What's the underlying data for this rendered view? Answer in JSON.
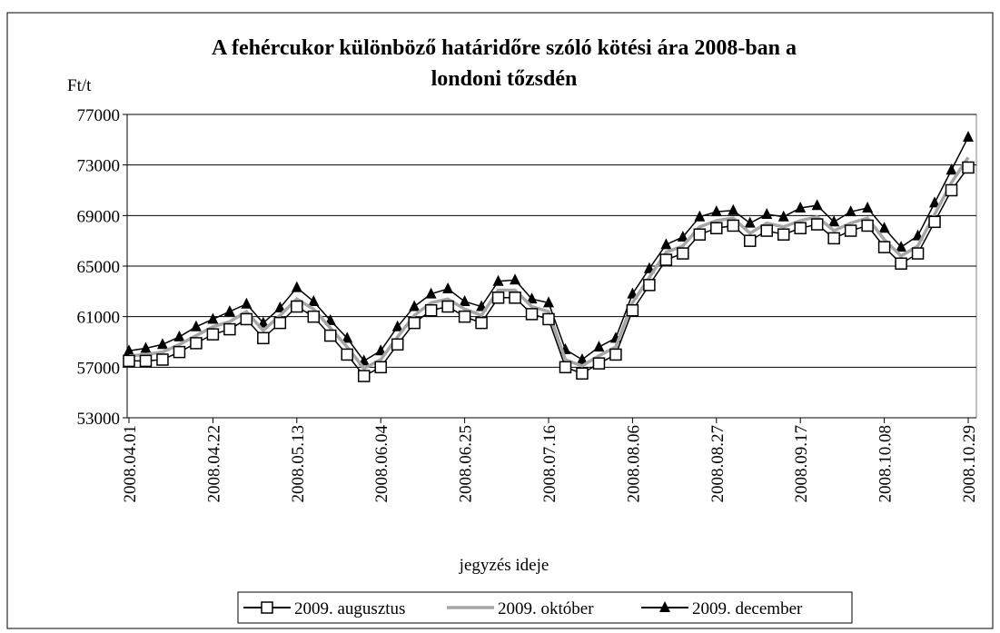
{
  "chart_data": {
    "type": "line",
    "title": "A fehércukor különböző határidőre szóló kötési ára 2008-ban a",
    "title_line2": "londoni tőzsdén",
    "y_label": "Ft/t",
    "x_label": "jegyzés ideje",
    "categories": [
      "2008.04.01",
      null,
      null,
      null,
      null,
      "2008.04.22",
      null,
      null,
      null,
      null,
      "2008.05.13",
      null,
      null,
      null,
      null,
      "2008.06.04",
      null,
      null,
      null,
      null,
      "2008.06.25",
      null,
      null,
      null,
      null,
      "2008.07.16",
      null,
      null,
      null,
      null,
      "2008.08.06",
      null,
      null,
      null,
      null,
      "2008.08.27",
      null,
      null,
      null,
      null,
      "2008.09.17",
      null,
      null,
      null,
      null,
      "2008.10.08",
      null,
      null,
      null,
      null,
      "2008.10.29"
    ],
    "series": [
      {
        "name": "2009. augusztus",
        "color": "#000000",
        "marker": "square",
        "values": [
          57500,
          57500,
          57600,
          58200,
          58900,
          59600,
          60000,
          60800,
          59300,
          60500,
          61800,
          61000,
          59500,
          58000,
          56300,
          57000,
          58800,
          60500,
          61500,
          61800,
          61000,
          60500,
          62500,
          62500,
          61200,
          60800,
          57000,
          56500,
          57300,
          58000,
          61500,
          63500,
          65500,
          66000,
          67500,
          68000,
          68200,
          67000,
          67800,
          67500,
          68000,
          68300,
          67200,
          67800,
          68200,
          66500,
          65200,
          66000,
          68500,
          71000,
          72800
        ]
      },
      {
        "name": "2009. október",
        "color": "#a6a6a6",
        "marker": "none",
        "values": [
          57900,
          58000,
          58200,
          58800,
          59500,
          60200,
          60600,
          61400,
          59900,
          61100,
          62400,
          61600,
          60100,
          58600,
          56900,
          57600,
          59400,
          61100,
          62100,
          62400,
          61600,
          61100,
          63100,
          63100,
          61800,
          61400,
          57600,
          57100,
          57900,
          58600,
          62100,
          64100,
          66100,
          66600,
          68100,
          68600,
          68800,
          67600,
          68400,
          68100,
          68600,
          68900,
          67800,
          68400,
          68800,
          67100,
          65800,
          66600,
          69100,
          71600,
          73600
        ]
      },
      {
        "name": "2009. december",
        "color": "#000000",
        "marker": "triangle",
        "values": [
          58300,
          58500,
          58800,
          59400,
          60200,
          60800,
          61400,
          62000,
          60500,
          61700,
          63300,
          62200,
          60700,
          59300,
          57500,
          58300,
          60200,
          61800,
          62800,
          63200,
          62200,
          61800,
          63800,
          63900,
          62400,
          62100,
          58400,
          57600,
          58600,
          59300,
          62800,
          64800,
          66700,
          67300,
          68900,
          69300,
          69400,
          68400,
          69100,
          68900,
          69600,
          69800,
          68500,
          69300,
          69600,
          68000,
          66500,
          67400,
          70000,
          72600,
          75200
        ]
      }
    ],
    "ylim": [
      53000,
      77000
    ],
    "yticks": [
      53000,
      57000,
      61000,
      65000,
      69000,
      73000,
      77000
    ],
    "grid": true,
    "legend": "bottom"
  }
}
